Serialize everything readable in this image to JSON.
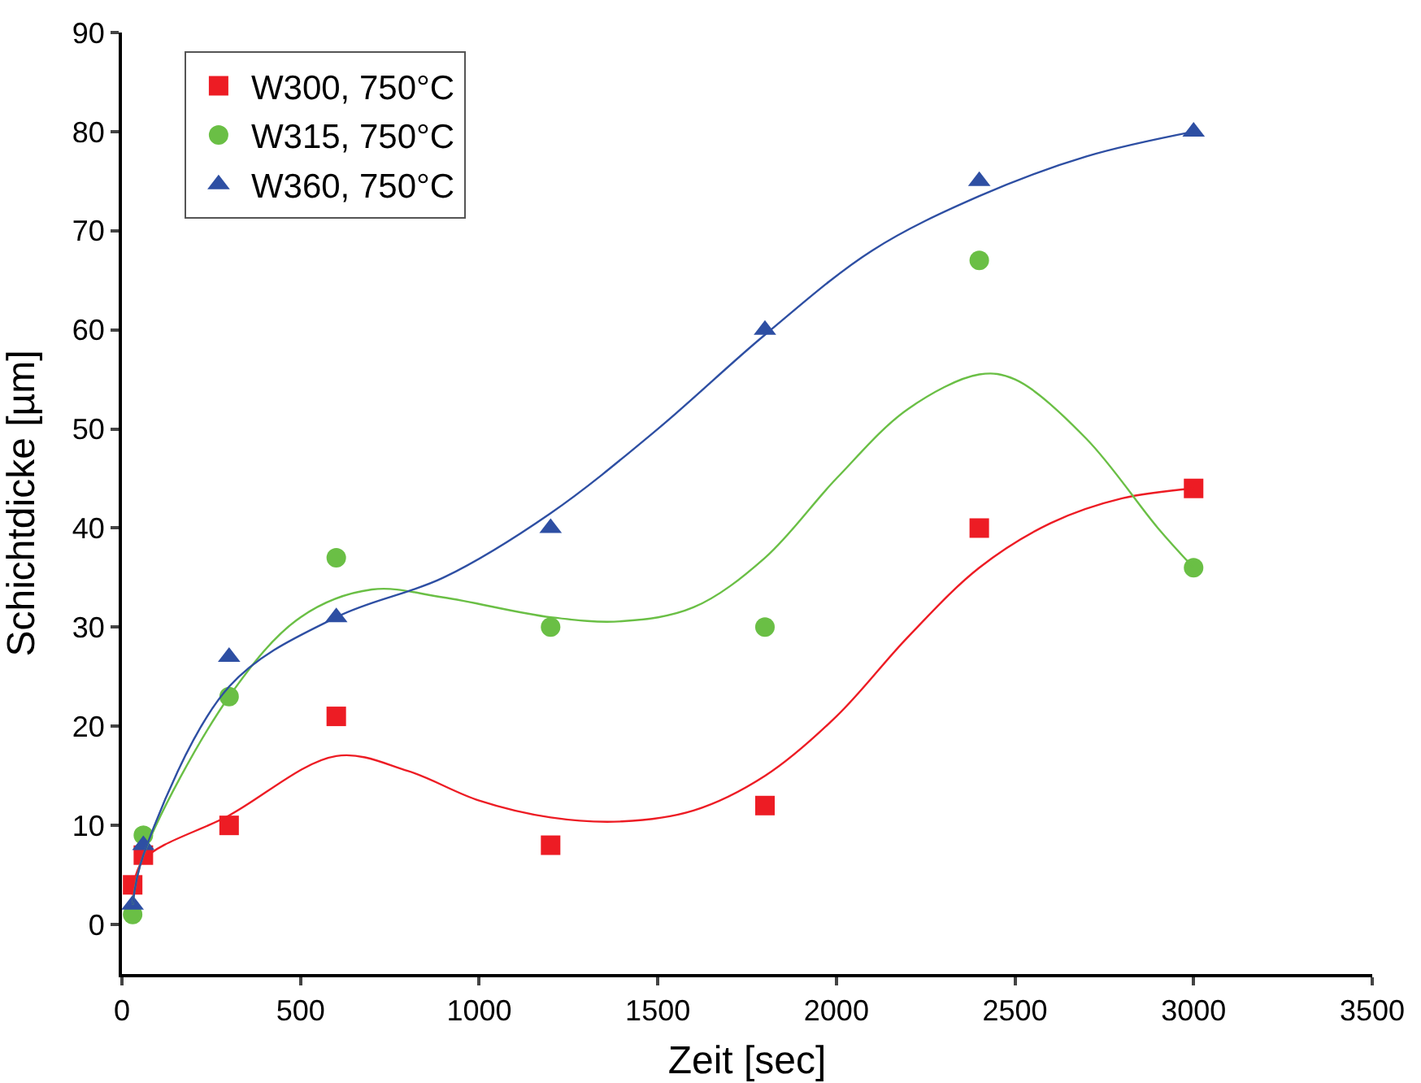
{
  "chart_data": {
    "type": "scatter",
    "xlabel": "Zeit [sec]",
    "ylabel": "Schichtdicke [µm]",
    "xlim": [
      0,
      3500
    ],
    "xticks": [
      0,
      500,
      1000,
      1500,
      2000,
      2500,
      3000,
      3500
    ],
    "ylim": [
      -5,
      90
    ],
    "yticks": [
      0,
      10,
      20,
      30,
      40,
      50,
      60,
      70,
      80,
      90
    ],
    "grid": false,
    "legend": "top left",
    "series": [
      {
        "name": "W300, 750°C",
        "color": "#ed1c24",
        "marker": "square",
        "x": [
          30,
          60,
          300,
          600,
          1200,
          1800,
          2400,
          3000
        ],
        "values": [
          4,
          7,
          10,
          21,
          8,
          12,
          40,
          44
        ]
      },
      {
        "name": "W315, 750°C",
        "color": "#6abf45",
        "marker": "circle",
        "x": [
          30,
          60,
          300,
          600,
          1200,
          1800,
          2400,
          3000
        ],
        "values": [
          1,
          9,
          23,
          37,
          30,
          30,
          67,
          36
        ]
      },
      {
        "name": "W360, 750°C",
        "color": "#2e4fa3",
        "marker": "triangle",
        "x": [
          30,
          60,
          300,
          600,
          1200,
          1800,
          2400,
          3000
        ],
        "values": [
          2,
          8,
          27,
          31,
          40,
          60,
          75,
          80
        ]
      },
      {
        "type": "line",
        "color": "#ed1c24",
        "line_style": "solid",
        "x": [
          30,
          60,
          300,
          600,
          800,
          1000,
          1200,
          1400,
          1600,
          1800,
          2000,
          2200,
          2400,
          2600,
          2800,
          3000
        ],
        "values": [
          3,
          6.5,
          11,
          17,
          15.5,
          12.5,
          10.8,
          10.4,
          11.5,
          15,
          21,
          29,
          36,
          40.5,
          43,
          44
        ]
      },
      {
        "type": "line",
        "color": "#6abf45",
        "line_style": "solid",
        "x": [
          30,
          60,
          300,
          500,
          700,
          900,
          1200,
          1400,
          1600,
          1800,
          2000,
          2200,
          2400,
          2500,
          2700,
          2900,
          3000
        ],
        "values": [
          2,
          7,
          23,
          31,
          33.8,
          33,
          31,
          30.6,
          32,
          37,
          45,
          52,
          55.5,
          55,
          49,
          40,
          36
        ]
      },
      {
        "type": "line",
        "color": "#2e4fa3",
        "line_style": "solid",
        "x": [
          30,
          60,
          300,
          600,
          900,
          1200,
          1500,
          1800,
          2100,
          2400,
          2700,
          3000
        ],
        "values": [
          2,
          7,
          24,
          31,
          35,
          41.5,
          50,
          59.5,
          68,
          73.5,
          77.5,
          80
        ]
      }
    ]
  }
}
